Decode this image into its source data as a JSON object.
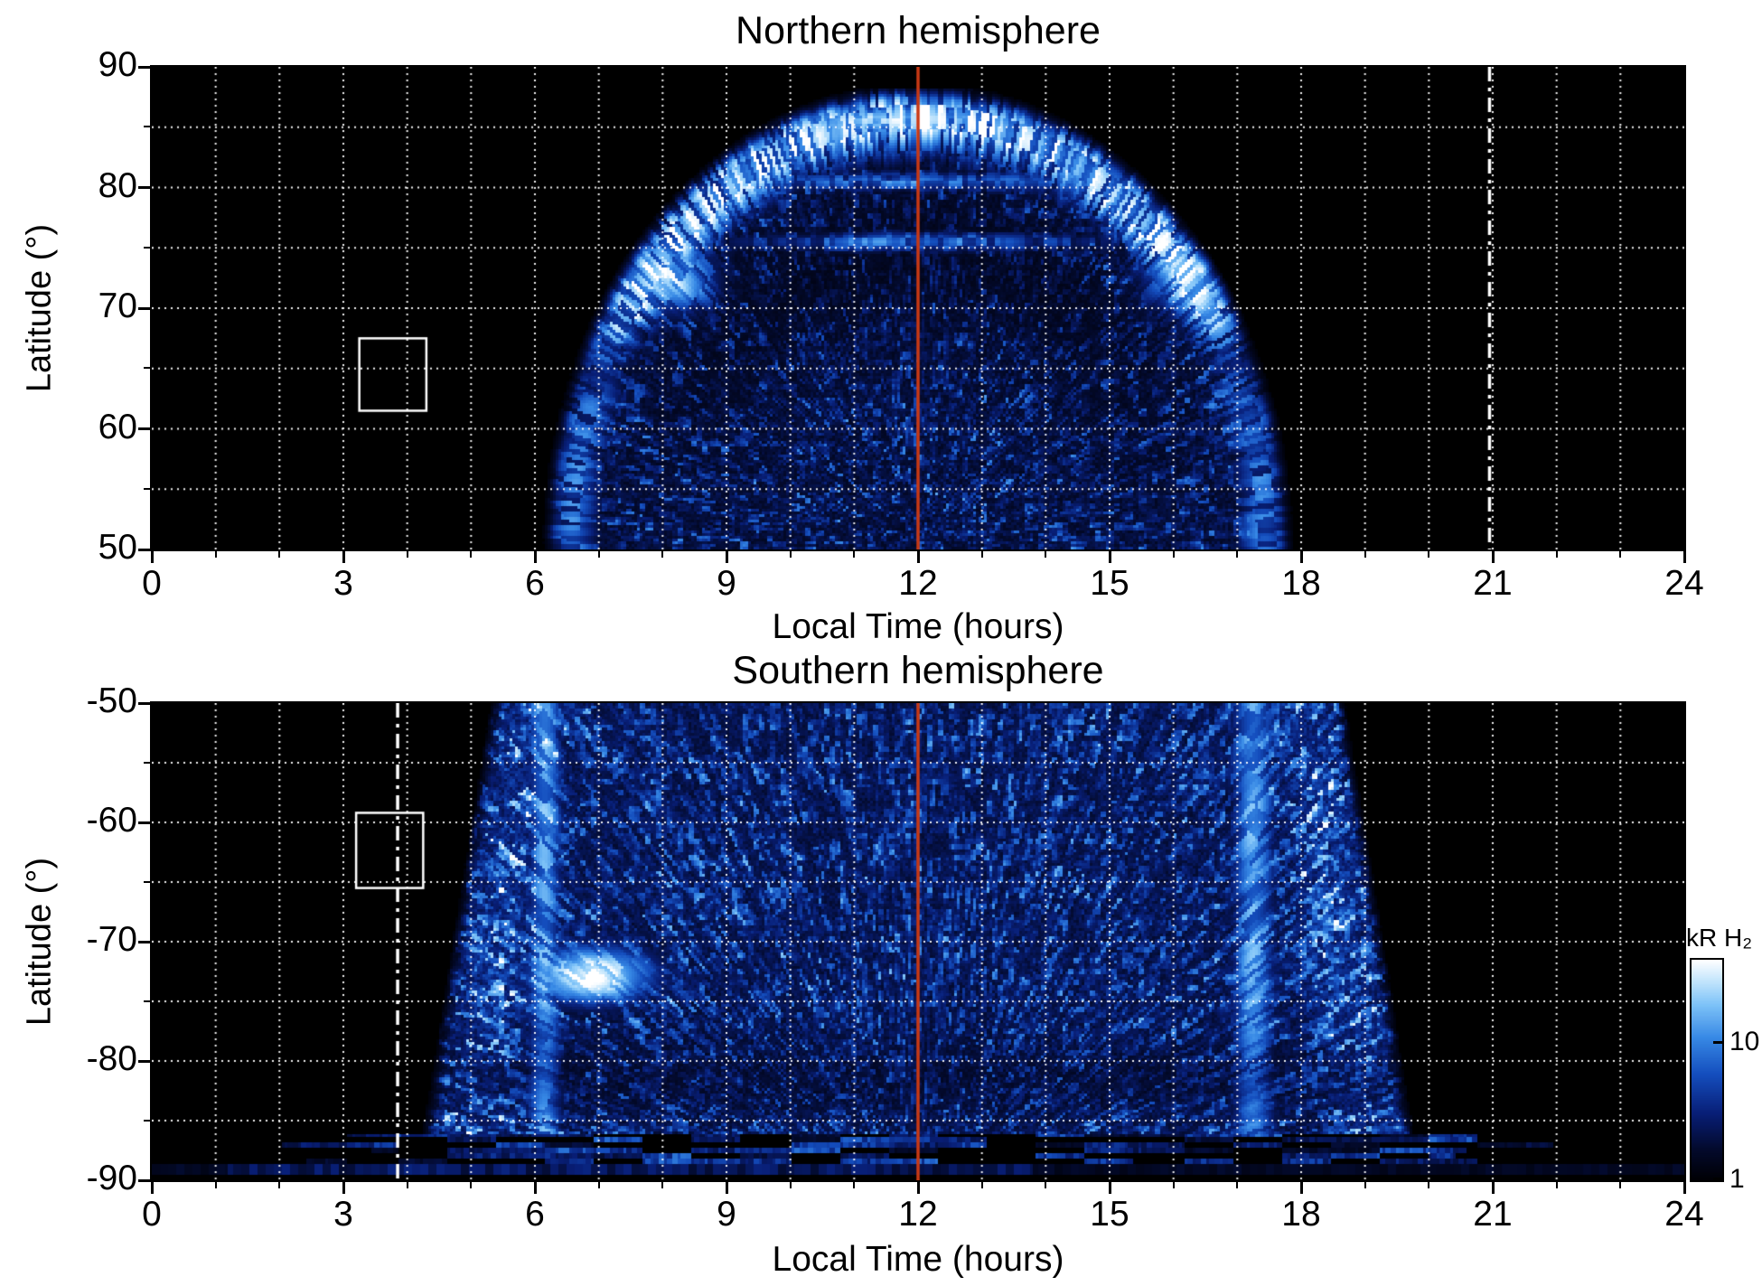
{
  "chart_data": [
    {
      "type": "heatmap",
      "title": "Northern hemisphere",
      "xlabel": "Local Time (hours)",
      "ylabel": "Latitude (°)",
      "xlim": [
        0,
        24
      ],
      "ylim": [
        50,
        90
      ],
      "xticks": [
        "0",
        "3",
        "6",
        "9",
        "12",
        "15",
        "18",
        "21",
        "24"
      ],
      "yticks": [
        "90",
        "80",
        "70",
        "60",
        "50"
      ],
      "grid": {
        "x_step_hours": 1,
        "y_step_deg": 5,
        "style": "dotted",
        "color": "#ffffff"
      },
      "annotations": {
        "noon_line": {
          "x_hours": 12,
          "color": "#c83914",
          "style": "solid"
        },
        "dash_dot_line": {
          "x_hours": 20.95,
          "color": "#ffffff",
          "style": "dash-dot"
        },
        "roi_box": {
          "x_hours": [
            3.25,
            4.3
          ],
          "lat_deg": [
            61.5,
            67.5
          ],
          "color": "#ffffff"
        }
      },
      "emission": {
        "units": "kR H₂",
        "local_time_extent_hours": [
          6.3,
          17.9
        ],
        "latitude_extent_deg": [
          50,
          88
        ],
        "bright_auroral_oval": {
          "latitude_deg": [
            66,
            86
          ],
          "peak_local_time_hours": [
            8,
            16.5
          ]
        },
        "appearance": "radial blue streaks; bright white dayside auroral oval; dark mottled interior at lower latitudes; black outside 6.3-17.9 h"
      }
    },
    {
      "type": "heatmap",
      "title": "Southern hemisphere",
      "xlabel": "Local Time (hours)",
      "ylabel": "Latitude (°)",
      "xlim": [
        0,
        24
      ],
      "ylim": [
        -90,
        -50
      ],
      "xticks": [
        "0",
        "3",
        "6",
        "9",
        "12",
        "15",
        "18",
        "21",
        "24"
      ],
      "yticks": [
        "-50",
        "-60",
        "-70",
        "-80",
        "-90"
      ],
      "grid": {
        "x_step_hours": 1,
        "y_step_deg": 5,
        "style": "dotted",
        "color": "#ffffff"
      },
      "annotations": {
        "noon_line": {
          "x_hours": 12,
          "color": "#c83914",
          "style": "solid"
        },
        "dash_dot_line": {
          "x_hours": 3.85,
          "color": "#ffffff",
          "style": "dash-dot"
        },
        "roi_box": {
          "x_hours": [
            3.2,
            4.25
          ],
          "lat_deg": [
            -65.5,
            -59.2
          ],
          "color": "#ffffff"
        }
      },
      "emission": {
        "units": "kR H₂",
        "local_time_extent_hours": [
          4.5,
          19.5
        ],
        "latitude_extent_deg": [
          -90,
          -50
        ],
        "bright_patch": {
          "local_time_hours": [
            5.8,
            7.8
          ],
          "latitude_deg": [
            -76,
            -69
          ]
        },
        "polar_band": {
          "latitude_deg": -89,
          "local_time_extent_hours": [
            0,
            24
          ]
        },
        "appearance": "dense mottled blue emission filling 4.5-19.5 h; bright morning-side patch; streaked bright edges; sparse horizontal streaks below -86; thin blue band near -89 spanning all local times"
      }
    }
  ],
  "colorbar": {
    "label": "kR H₂",
    "tick_labels": [
      "10",
      "1"
    ],
    "scale": "log"
  }
}
